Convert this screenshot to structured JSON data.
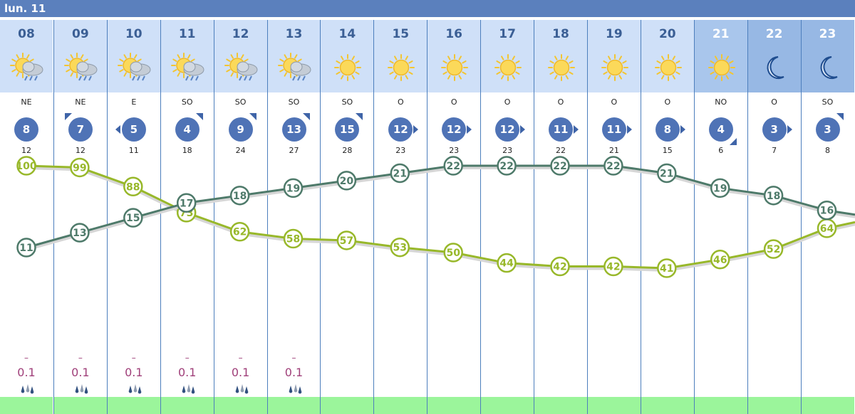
{
  "day_label": "lun. 11",
  "colors": {
    "day_bar": "#5b80bd",
    "header": "#cfe0f8",
    "temperature": "#4e7a6a",
    "humidity": "#98b82a",
    "wind_badge": "#4f73b6",
    "rain": "#a0407a",
    "footer": "#9bf59b"
  },
  "hours": [
    {
      "hour": "08",
      "icon": "sun-cloud-rain-icon",
      "wind_dir": "NE",
      "wind_speed": "8",
      "arrow": "none",
      "gust": "12",
      "rain_dash": "–",
      "rain": "0.1",
      "rain_icon": "rain-drops-icon",
      "tone": "day"
    },
    {
      "hour": "09",
      "icon": "sun-cloud-rain-icon",
      "wind_dir": "NE",
      "wind_speed": "7",
      "arrow": "up-left",
      "gust": "12",
      "rain_dash": "–",
      "rain": "0.1",
      "rain_icon": "rain-drops-icon",
      "tone": "day"
    },
    {
      "hour": "10",
      "icon": "sun-cloud-rain-icon",
      "wind_dir": "E",
      "wind_speed": "5",
      "arrow": "left",
      "gust": "11",
      "rain_dash": "–",
      "rain": "0.1",
      "rain_icon": "rain-drops-icon",
      "tone": "day"
    },
    {
      "hour": "11",
      "icon": "sun-cloud-rain-icon",
      "wind_dir": "SO",
      "wind_speed": "4",
      "arrow": "up-right",
      "gust": "18",
      "rain_dash": "–",
      "rain": "0.1",
      "rain_icon": "rain-drops-icon",
      "tone": "day"
    },
    {
      "hour": "12",
      "icon": "sun-cloud-rain-icon",
      "wind_dir": "SO",
      "wind_speed": "9",
      "arrow": "up-right",
      "gust": "24",
      "rain_dash": "–",
      "rain": "0.1",
      "rain_icon": "rain-drops-icon",
      "tone": "day"
    },
    {
      "hour": "13",
      "icon": "sun-cloud-rain-icon",
      "wind_dir": "SO",
      "wind_speed": "13",
      "arrow": "up-right",
      "gust": "27",
      "rain_dash": "–",
      "rain": "0.1",
      "rain_icon": "rain-drops-icon",
      "tone": "day"
    },
    {
      "hour": "14",
      "icon": "sun-icon",
      "wind_dir": "SO",
      "wind_speed": "15",
      "arrow": "up-right",
      "gust": "28",
      "rain_dash": "",
      "rain": "",
      "rain_icon": "",
      "tone": "day"
    },
    {
      "hour": "15",
      "icon": "sun-icon",
      "wind_dir": "O",
      "wind_speed": "12",
      "arrow": "right",
      "gust": "23",
      "rain_dash": "",
      "rain": "",
      "rain_icon": "",
      "tone": "day"
    },
    {
      "hour": "16",
      "icon": "sun-icon",
      "wind_dir": "O",
      "wind_speed": "12",
      "arrow": "right",
      "gust": "23",
      "rain_dash": "",
      "rain": "",
      "rain_icon": "",
      "tone": "day"
    },
    {
      "hour": "17",
      "icon": "sun-icon",
      "wind_dir": "O",
      "wind_speed": "12",
      "arrow": "right",
      "gust": "23",
      "rain_dash": "",
      "rain": "",
      "rain_icon": "",
      "tone": "day"
    },
    {
      "hour": "18",
      "icon": "sun-icon",
      "wind_dir": "O",
      "wind_speed": "11",
      "arrow": "right",
      "gust": "22",
      "rain_dash": "",
      "rain": "",
      "rain_icon": "",
      "tone": "day"
    },
    {
      "hour": "19",
      "icon": "sun-icon",
      "wind_dir": "O",
      "wind_speed": "11",
      "arrow": "right",
      "gust": "21",
      "rain_dash": "",
      "rain": "",
      "rain_icon": "",
      "tone": "day"
    },
    {
      "hour": "20",
      "icon": "sun-icon",
      "wind_dir": "O",
      "wind_speed": "8",
      "arrow": "right",
      "gust": "15",
      "rain_dash": "",
      "rain": "",
      "rain_icon": "",
      "tone": "day"
    },
    {
      "hour": "21",
      "icon": "sun-icon",
      "wind_dir": "NO",
      "wind_speed": "4",
      "arrow": "down-right",
      "gust": "6",
      "rain_dash": "",
      "rain": "",
      "rain_icon": "",
      "tone": "dusk"
    },
    {
      "hour": "22",
      "icon": "moon-icon",
      "wind_dir": "O",
      "wind_speed": "3",
      "arrow": "right",
      "gust": "7",
      "rain_dash": "",
      "rain": "",
      "rain_icon": "",
      "tone": "night"
    },
    {
      "hour": "23",
      "icon": "moon-icon",
      "wind_dir": "SO",
      "wind_speed": "3",
      "arrow": "up-right",
      "gust": "8",
      "rain_dash": "",
      "rain": "",
      "rain_icon": "",
      "tone": "night"
    }
  ],
  "chart_data": {
    "type": "line",
    "categories": [
      "08",
      "09",
      "10",
      "11",
      "12",
      "13",
      "14",
      "15",
      "16",
      "17",
      "18",
      "19",
      "20",
      "21",
      "22",
      "23"
    ],
    "series": [
      {
        "values": [
          11,
          13,
          15,
          17,
          18,
          19,
          20,
          21,
          22,
          22,
          22,
          22,
          21,
          19,
          18,
          16
        ],
        "color": "#4e7a6a"
      },
      {
        "values": [
          100,
          99,
          88,
          73,
          62,
          58,
          57,
          53,
          50,
          44,
          42,
          42,
          41,
          46,
          52,
          64
        ],
        "color": "#98b82a"
      }
    ],
    "grid": true
  }
}
